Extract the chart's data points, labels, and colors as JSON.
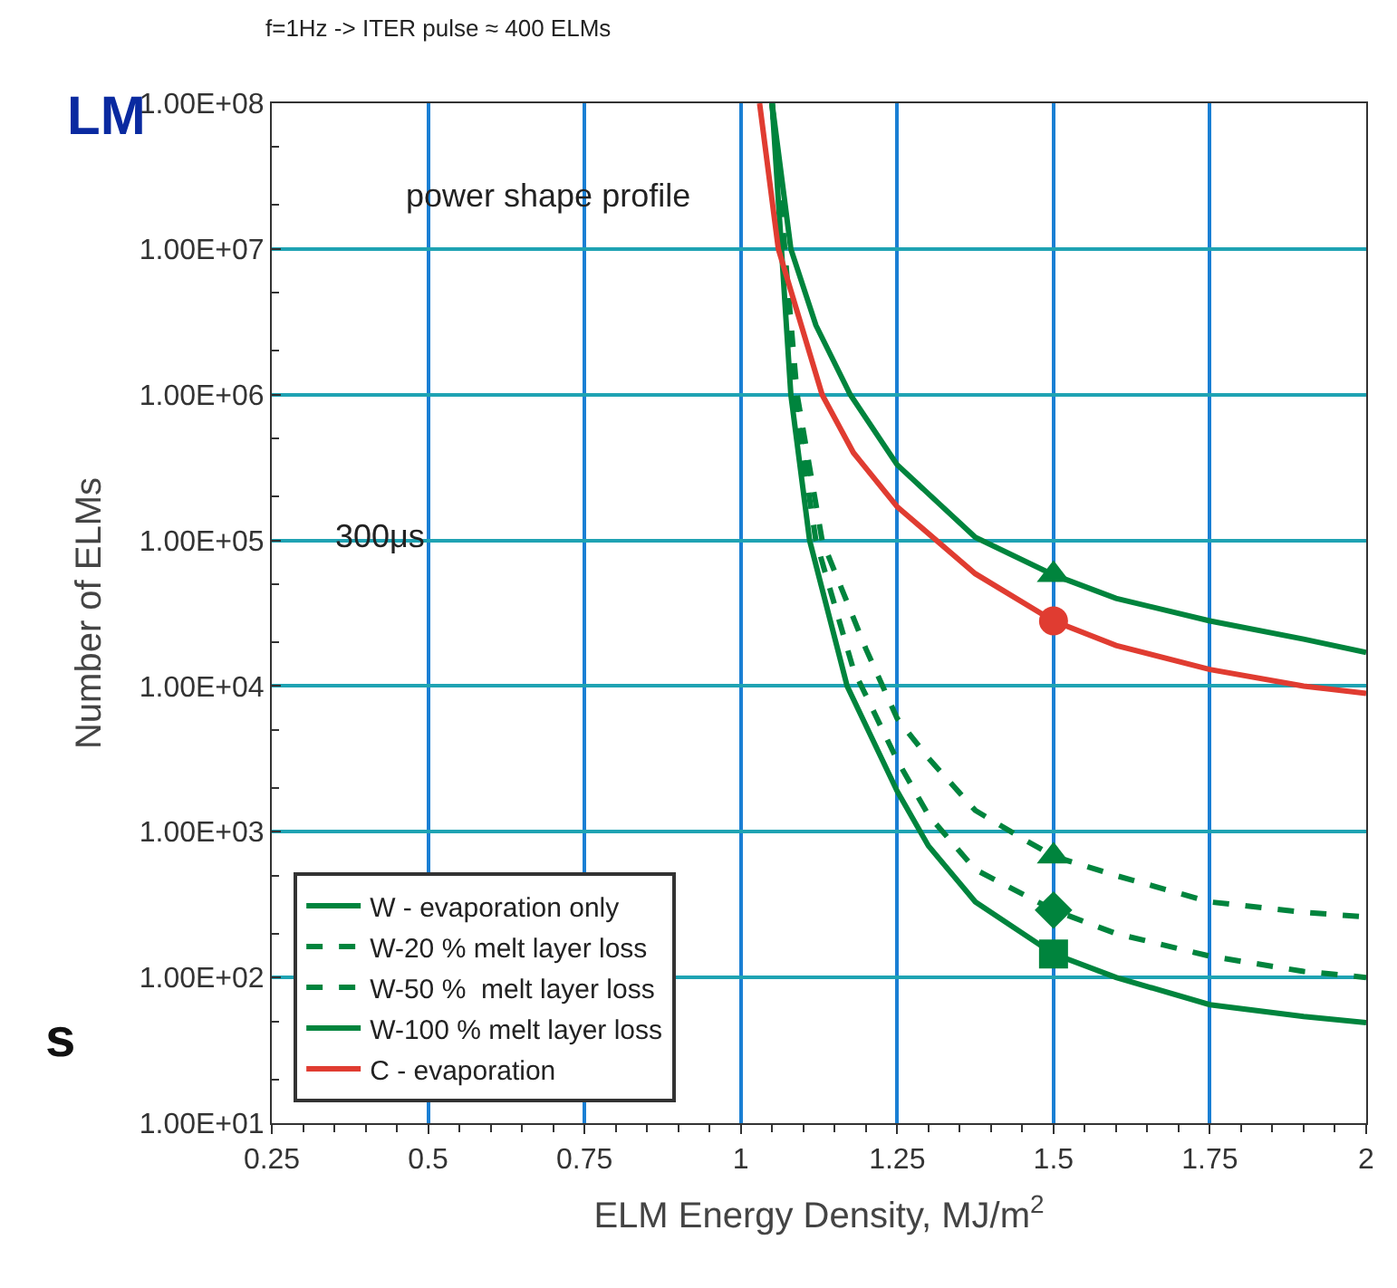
{
  "chart_data": {
    "type": "line",
    "title": "f=1Hz -> ITER pulse ≈ 400 ELMs",
    "xlabel": "ELM Energy Density, MJ/m$^{2}$",
    "ylabel": "Number of ELMs",
    "log": "y",
    "xlim": [
      0.25,
      2
    ],
    "xticks": [
      0.25,
      0.5,
      0.75,
      1,
      1.25,
      1.5,
      1.75,
      2
    ],
    "ylim": [
      10,
      100000000
    ],
    "yticks": [
      {
        "value": 10,
        "label": "1.00E+01"
      },
      {
        "value": 100,
        "label": "1.00E+02"
      },
      {
        "value": 1000,
        "label": "1.00E+03"
      },
      {
        "value": 10000,
        "label": "1.00E+04"
      },
      {
        "value": 100000,
        "label": "1.00E+05"
      },
      {
        "value": 1000000,
        "label": "1.00E+06"
      },
      {
        "value": 10000000,
        "label": "1.00E+07"
      },
      {
        "value": 100000000,
        "label": "1.00E+08"
      }
    ],
    "grid": true,
    "legend": "bottom left",
    "series": [
      {
        "name": "W - evaporation only",
        "color": "#00843d",
        "line_style": "solid",
        "x": [
          1.05,
          1.08,
          1.12,
          1.175,
          1.25,
          1.375,
          1.5,
          1.6,
          1.75,
          1.9,
          2
        ],
        "values": [
          100000000,
          10000000,
          3000000,
          1000000,
          330000,
          105000,
          58000,
          40000,
          28000,
          21000,
          17000
        ]
      },
      {
        "name": "W-20 % melt layer loss",
        "color": "#00843d",
        "line_style": "dashed",
        "x": [
          1.05,
          1.07,
          1.09,
          1.13,
          1.2,
          1.25,
          1.3,
          1.375,
          1.45,
          1.5,
          1.6,
          1.75,
          1.9,
          2
        ],
        "values": [
          100000000,
          10000000,
          1000000,
          100000,
          18000,
          6000,
          3200,
          1400,
          900,
          680,
          500,
          330,
          280,
          260
        ]
      },
      {
        "name": "W-50 %  melt layer loss",
        "color": "#00843d",
        "line_style": "dashed",
        "x": [
          1.05,
          1.07,
          1.085,
          1.12,
          1.18,
          1.25,
          1.3,
          1.375,
          1.5,
          1.6,
          1.75,
          1.9,
          2
        ],
        "values": [
          100000000,
          10000000,
          1000000,
          100000,
          13000,
          3100,
          1300,
          550,
          290,
          200,
          140,
          110,
          100
        ]
      },
      {
        "name": "W-100 % melt layer loss",
        "color": "#00843d",
        "line_style": "solid",
        "x": [
          1.05,
          1.065,
          1.08,
          1.11,
          1.17,
          1.25,
          1.3,
          1.375,
          1.5,
          1.6,
          1.75,
          1.9,
          2
        ],
        "values": [
          100000000,
          10000000,
          1000000,
          100000,
          10000,
          1900,
          800,
          330,
          145,
          100,
          65,
          54,
          49
        ]
      },
      {
        "name": "C - evaporation",
        "color": "#e03c31",
        "line_style": "solid",
        "x": [
          1.03,
          1.06,
          1.13,
          1.18,
          1.25,
          1.375,
          1.5,
          1.6,
          1.75,
          1.9,
          2
        ],
        "values": [
          100000000,
          10000000,
          1000000,
          400000,
          170000,
          59000,
          28000,
          19000,
          13000,
          10000,
          8900
        ]
      },
      {
        "type": "scatter",
        "marker": "triangle",
        "color": "#00843d",
        "x": [
          1.5
        ],
        "values": [
          58000
        ]
      },
      {
        "type": "scatter",
        "marker": "triangle",
        "color": "#00843d",
        "x": [
          1.5
        ],
        "values": [
          680
        ]
      },
      {
        "type": "scatter",
        "marker": "diamond",
        "color": "#00843d",
        "x": [
          1.5
        ],
        "values": [
          290
        ]
      },
      {
        "type": "scatter",
        "marker": "square",
        "color": "#00843d",
        "x": [
          1.5
        ],
        "values": [
          145
        ]
      },
      {
        "type": "scatter",
        "marker": "circle",
        "color": "#e03c31",
        "x": [
          1.5
        ],
        "values": [
          28000
        ]
      }
    ],
    "annotations": [
      "power shape profile",
      "300μs",
      "LM",
      "s"
    ]
  }
}
